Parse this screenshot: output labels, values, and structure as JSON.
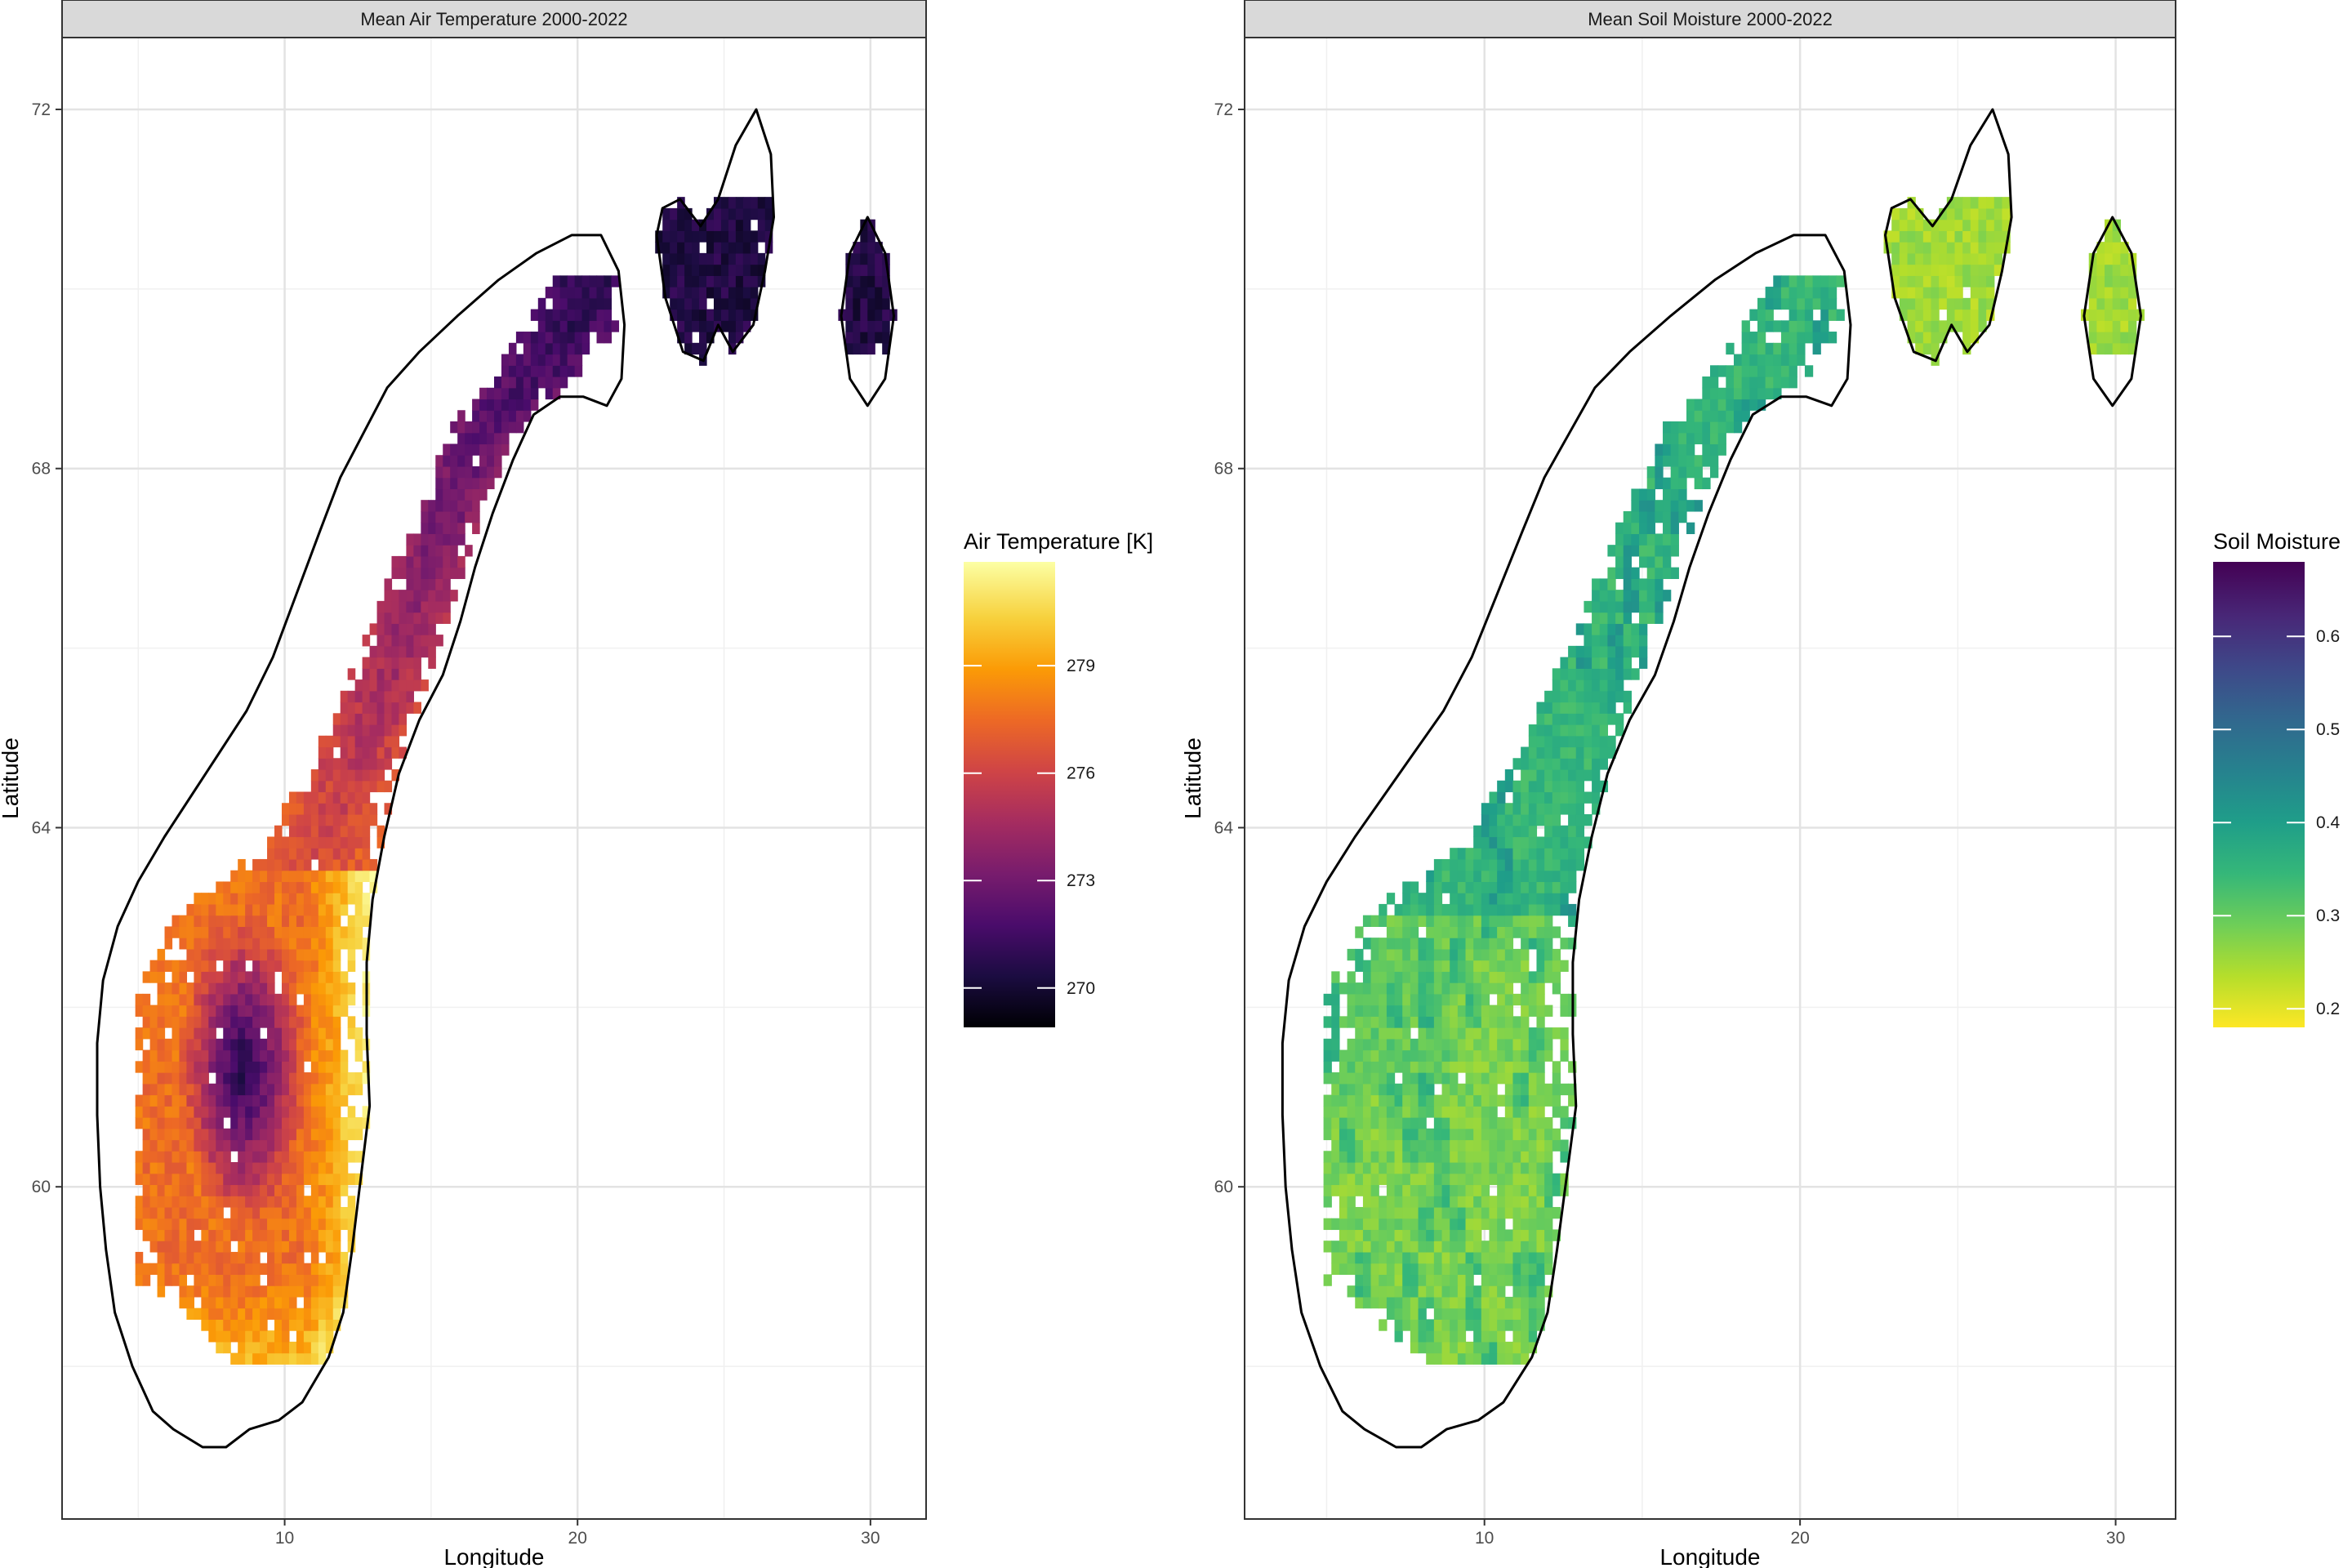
{
  "chart_data": [
    {
      "type": "heatmap",
      "title": "Mean Air Temperature 2000-2022",
      "xlabel": "Longitude",
      "ylabel": "Latitude",
      "x_ticks": [
        10,
        20,
        30
      ],
      "y_ticks": [
        60,
        64,
        68,
        72
      ],
      "xlim": [
        2.4,
        31.9
      ],
      "ylim": [
        56.3,
        72.8
      ],
      "grid": true,
      "legend": {
        "title": "Air Temperature [K]",
        "placement": "right",
        "colormap": "inferno",
        "range": [
          268.9,
          281.9
        ],
        "ticks": [
          270,
          273,
          276,
          279
        ],
        "colors": [
          "#000004",
          "#1b0c41",
          "#4a0c6b",
          "#781c6d",
          "#a52c60",
          "#cf4446",
          "#ed6925",
          "#fb9b06",
          "#f7d13d",
          "#fcffa4"
        ]
      },
      "boundary_color": "#000000"
    },
    {
      "type": "heatmap",
      "title": "Mean Soil Moisture 2000-2022",
      "xlabel": "Longitude",
      "ylabel": "Latitude",
      "x_ticks": [
        10,
        20,
        30
      ],
      "y_ticks": [
        60,
        64,
        68,
        72
      ],
      "xlim": [
        2.4,
        31.9
      ],
      "ylim": [
        56.3,
        72.8
      ],
      "grid": true,
      "legend": {
        "title": "Soil Moisture",
        "placement": "right",
        "colormap": "viridis (reversed)",
        "range": [
          0.18,
          0.68
        ],
        "ticks": [
          0.2,
          0.3,
          0.4,
          0.5,
          0.6
        ],
        "colors": [
          "#fde725",
          "#b5de2b",
          "#6ece58",
          "#35b779",
          "#1f9e89",
          "#26828e",
          "#31688e",
          "#3e4989",
          "#482878",
          "#440154"
        ]
      },
      "boundary_color": "#000000"
    }
  ]
}
